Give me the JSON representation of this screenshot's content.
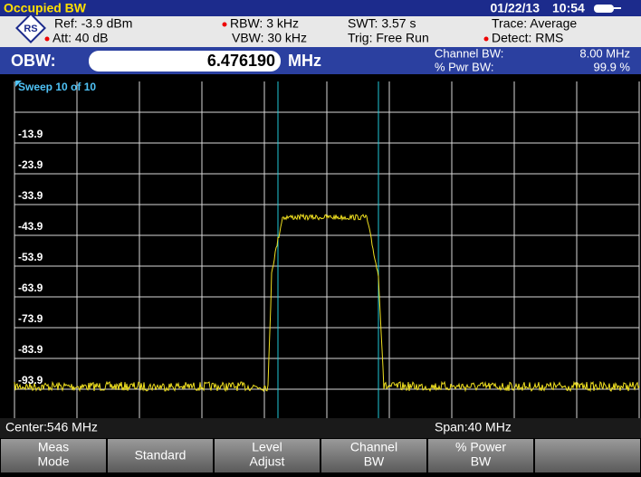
{
  "header": {
    "title": "Occupied BW",
    "date": "01/22/13",
    "time": "10:54"
  },
  "settings": {
    "ref": "Ref:  -3.9 dBm",
    "att": "Att:  40 dB",
    "rbw": "RBW:  3 kHz",
    "vbw": "VBW:  30 kHz",
    "swt": "SWT:  3.57 s",
    "trig": "Trig:  Free Run",
    "trace": "Trace:  Average",
    "detect": "Detect:  RMS"
  },
  "measurement": {
    "label": "OBW:",
    "value": "6.476190",
    "unit": "MHz",
    "channel_bw_label": "Channel BW:",
    "channel_bw": "8.00 MHz",
    "pwr_bw_label": "% Pwr BW:",
    "pwr_bw": "99.9 %"
  },
  "plot": {
    "sweep": "Sweep 10 of 10",
    "levels": [
      "-13.9",
      "-23.9",
      "-33.9",
      "-43.9",
      "-53.9",
      "-63.9",
      "-73.9",
      "-83.9",
      "-93.9"
    ]
  },
  "footer": {
    "center": "Center:546 MHz",
    "span": "Span:40 MHz"
  },
  "softkeys": [
    [
      "Meas",
      "Mode"
    ],
    [
      "Standard"
    ],
    [
      "Level",
      "Adjust"
    ],
    [
      "Channel",
      "BW"
    ],
    [
      "% Power",
      "BW"
    ],
    []
  ]
}
